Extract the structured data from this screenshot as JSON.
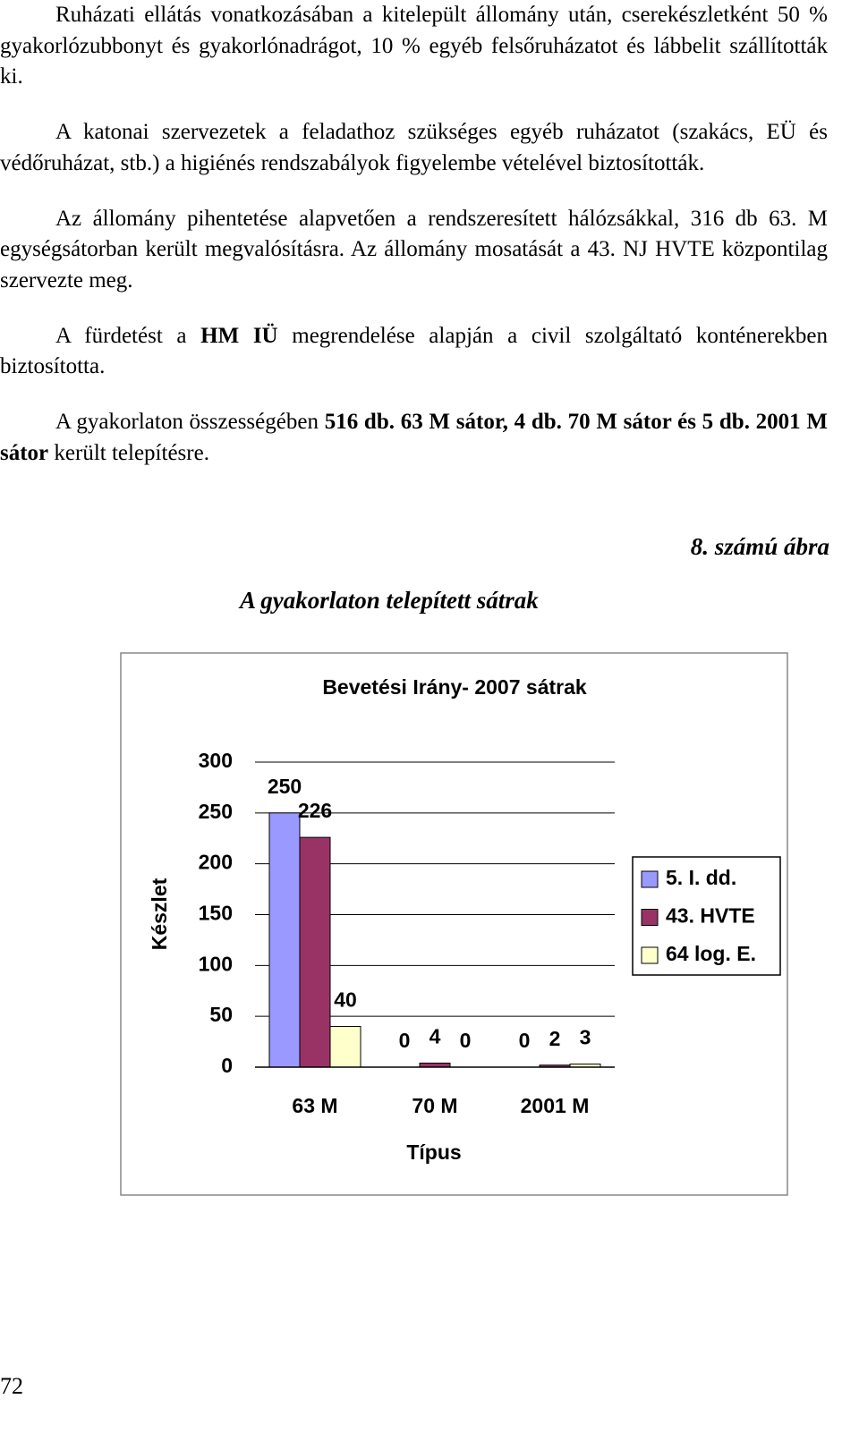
{
  "paragraphs": [
    [
      {
        "text": "Ruházati ellátás vonatkozásában a kitelepült állomány után, cserekészletként 50 % gyakorlózubbonyt és gyakorlónadrágot, 10 % egyéb felsőruházatot és lábbelit szállították ki."
      }
    ],
    [
      {
        "text": "A katonai szervezetek a feladathoz szükséges egyéb ruházatot (szakács, EÜ és védőruházat, stb.) a higiénés rendszabályok figyelembe vételével biztosították."
      }
    ],
    [
      {
        "text": "Az állomány pihentetése alapvetően a rendszeresített hálózsákkal, 316 db 63. M egységsátorban került megvalósításra. Az állomány mosatását a 43. NJ HVTE központilag szervezte meg."
      }
    ],
    [
      {
        "text": "A fürdetést a "
      },
      {
        "text": "HM IÜ",
        "bold": true
      },
      {
        "text": " megrendelése alapján a civil szolgáltató konténerekben biztosította."
      }
    ],
    [
      {
        "text": "A gyakorlaton összességében "
      },
      {
        "text": "516 db. 63 M sátor, 4 db. 70 M sátor és 5 db. 2001 M sátor",
        "bold": true
      },
      {
        "text": " került telepítésre."
      }
    ]
  ],
  "figure_number": "8. számú ábra",
  "figure_caption": "A gyakorlaton telepített sátrak",
  "chart_data": {
    "type": "bar",
    "title": "Bevetési Irány- 2007 sátrak",
    "x_label": "Típus",
    "y_label": "Készlet",
    "categories": [
      "63 M",
      "70 M",
      "2001 M"
    ],
    "series": [
      {
        "name": "5. I. dd.",
        "color": "#9999ff",
        "values": [
          250,
          0,
          0
        ]
      },
      {
        "name": "43. HVTE",
        "color": "#993366",
        "values": [
          226,
          4,
          2
        ]
      },
      {
        "name": "64 log. E.",
        "color": "#ffffcc",
        "values": [
          40,
          0,
          3
        ]
      }
    ],
    "ylim": [
      0,
      300
    ],
    "yticks": [
      0,
      50,
      100,
      150,
      200,
      250,
      300
    ],
    "grid": true,
    "legend": "right"
  },
  "page_number": "72"
}
